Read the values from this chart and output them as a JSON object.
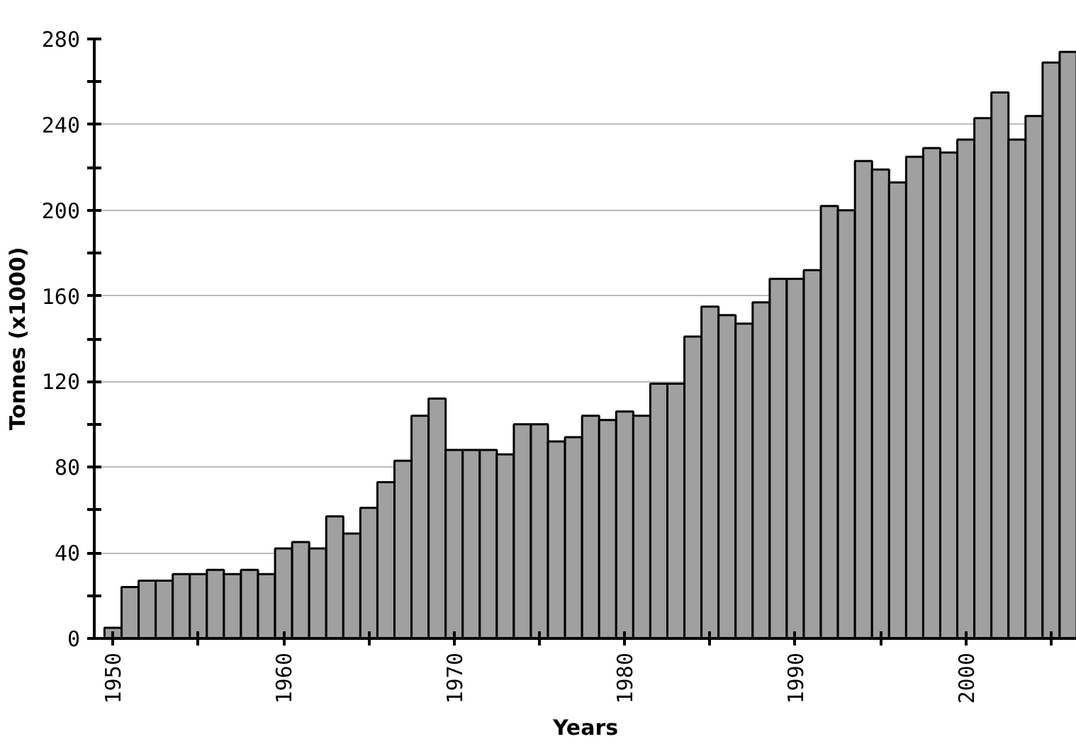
{
  "chart_data": {
    "type": "bar",
    "xlabel": "Years",
    "ylabel": "Tonnes (x1000)",
    "x": [
      1950,
      1951,
      1952,
      1953,
      1954,
      1955,
      1956,
      1957,
      1958,
      1959,
      1960,
      1961,
      1962,
      1963,
      1964,
      1965,
      1966,
      1967,
      1968,
      1969,
      1970,
      1971,
      1972,
      1973,
      1974,
      1975,
      1976,
      1977,
      1978,
      1979,
      1980,
      1981,
      1982,
      1983,
      1984,
      1985,
      1986,
      1987,
      1988,
      1989,
      1990,
      1991,
      1992,
      1993,
      1994,
      1995,
      1996,
      1997,
      1998,
      1999,
      2000,
      2001,
      2002,
      2003,
      2004,
      2005,
      2006
    ],
    "values": [
      5,
      24,
      27,
      27,
      30,
      30,
      32,
      30,
      32,
      30,
      42,
      45,
      42,
      57,
      49,
      61,
      73,
      83,
      104,
      112,
      88,
      88,
      88,
      86,
      100,
      100,
      92,
      94,
      104,
      102,
      106,
      104,
      119,
      119,
      141,
      155,
      151,
      147,
      157,
      168,
      168,
      172,
      202,
      200,
      223,
      219,
      213,
      225,
      229,
      227,
      233,
      243,
      255,
      233,
      244,
      269,
      274
    ],
    "color": "#a0a0a0",
    "xlim": [
      1948.9,
      2006.5
    ],
    "ylim": [
      0,
      280
    ],
    "xticks": [
      1950,
      {
        "value": 1955,
        "label": null
      },
      1960,
      {
        "value": 1965,
        "label": null
      },
      1970,
      {
        "value": 1975,
        "label": null
      },
      1980,
      {
        "value": 1985,
        "label": null
      },
      1990,
      {
        "value": 1995,
        "label": null
      },
      2000,
      {
        "value": 2005,
        "label": null
      }
    ],
    "yticks": [
      0,
      {
        "value": 20,
        "label": null
      },
      40,
      {
        "value": 60,
        "label": null
      },
      80,
      {
        "value": 100,
        "label": null
      },
      120,
      {
        "value": 140,
        "label": null
      },
      160,
      {
        "value": 180,
        "label": null
      },
      200,
      {
        "value": 220,
        "label": null
      },
      240,
      {
        "value": 260,
        "label": null
      },
      280
    ],
    "grid": "y"
  }
}
